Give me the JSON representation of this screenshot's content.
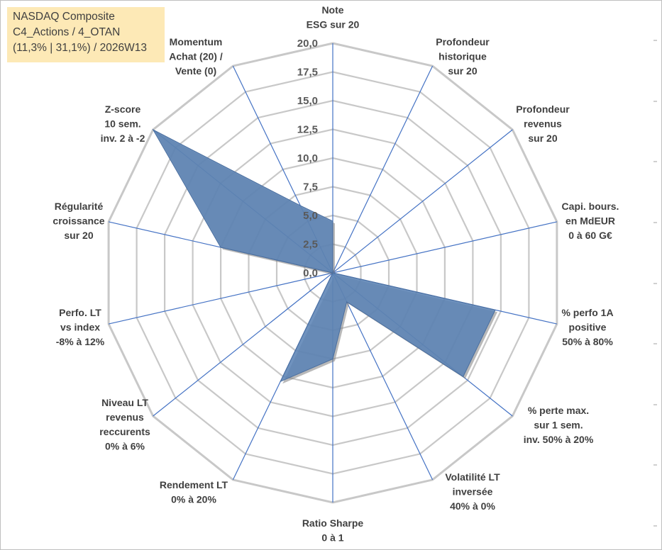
{
  "title": {
    "line1": "NASDAQ Composite",
    "line2": "C4_Actions / 4_OTAN",
    "line3": "(11,3% | 31,1%) / 2026W13"
  },
  "colors": {
    "grid": "#c8c8c8",
    "axis": "#4472c4",
    "fill": "#5b83b5",
    "stroke": "#4a6e9e",
    "shadow": "#7f7f7f",
    "title_bg": "#fde9b6",
    "text": "#404040"
  },
  "chart_data": {
    "type": "radar",
    "range": [
      0,
      20
    ],
    "ticks": [
      "0,0",
      "2,5",
      "5,0",
      "7,5",
      "10,0",
      "12,5",
      "15,0",
      "17,5",
      "20,0"
    ],
    "tick_values": [
      0,
      2.5,
      5,
      7.5,
      10,
      12.5,
      15,
      17.5,
      20
    ],
    "axes": [
      {
        "label": [
          "Note",
          "ESG sur 20"
        ],
        "value": 4.5
      },
      {
        "label": [
          "Profondeur",
          "historique",
          "sur 20"
        ],
        "value": 0
      },
      {
        "label": [
          "Profondeur",
          "revenus",
          "sur 20"
        ],
        "value": 0
      },
      {
        "label": [
          "Capi. bours.",
          "en MdEUR",
          "0 à 60 G€"
        ],
        "value": 0
      },
      {
        "label": [
          "% perfo 1A",
          "positive",
          "50% à 80%"
        ],
        "value": 14.5
      },
      {
        "label": [
          "% perte max.",
          "sur 1 sem.",
          "inv. 50% à 20%"
        ],
        "value": 14.5
      },
      {
        "label": [
          "Volatilité LT",
          "inversée",
          "40% à 0%"
        ],
        "value": 2.8
      },
      {
        "label": [
          "Ratio Sharpe",
          "0 à 1"
        ],
        "value": 7.5
      },
      {
        "label": [
          "Rendement LT",
          "0% à 20%"
        ],
        "value": 10.5
      },
      {
        "label": [
          "Niveau LT",
          "revenus",
          "reccurents",
          "0% à 6%"
        ],
        "value": 0
      },
      {
        "label": [
          "Perfo. LT",
          "vs index",
          "-8% à 12%"
        ],
        "value": 0
      },
      {
        "label": [
          "Régularité",
          "croissance",
          "sur 20"
        ],
        "value": 10
      },
      {
        "label": [
          "Z-score",
          "10 sem.",
          "inv. 2 à -2"
        ],
        "value": 20
      },
      {
        "label": [
          "Momentum",
          "Achat (20) /",
          "Vente (0)"
        ],
        "value": 6.5
      }
    ]
  }
}
